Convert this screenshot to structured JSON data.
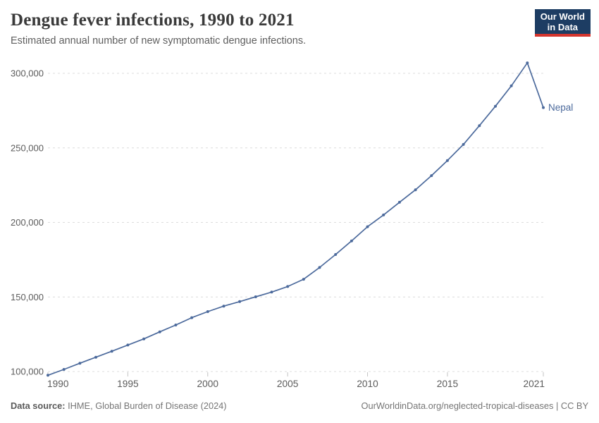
{
  "header": {
    "title": "Dengue fever infections, 1990 to 2021",
    "subtitle": "Estimated annual number of new symptomatic dengue infections.",
    "logo": {
      "line1": "Our World",
      "line2": "in Data"
    }
  },
  "footer": {
    "source_label": "Data source:",
    "source_text": " IHME, Global Burden of Disease (2024)",
    "link_text": "OurWorldinData.org/neglected-tropical-diseases | CC BY"
  },
  "colors": {
    "series": "#4c6a9c",
    "gridline": "#dcdcdc",
    "tick": "#c3c3c3",
    "axis_label": "#5b5b5b",
    "logo_bg": "#1d3d63",
    "logo_red": "#d3352e"
  },
  "chart_data": {
    "type": "line",
    "title": "Dengue fever infections, 1990 to 2021",
    "subtitle": "Estimated annual number of new symptomatic dengue infections.",
    "xlabel": "",
    "ylabel": "",
    "grid": true,
    "legend": "end-of-line-label",
    "xlim": [
      1990,
      2021
    ],
    "ylim": [
      100000,
      300000
    ],
    "x_ticks": [
      1990,
      1995,
      2000,
      2005,
      2010,
      2015,
      2021
    ],
    "y_ticks": [
      100000,
      150000,
      200000,
      250000,
      300000
    ],
    "y_tick_labels": [
      "100,000",
      "150,000",
      "200,000",
      "250,000",
      "300,000"
    ],
    "x": [
      1990,
      1991,
      1992,
      1993,
      1994,
      1995,
      1996,
      1997,
      1998,
      1999,
      2000,
      2001,
      2002,
      2003,
      2004,
      2005,
      2006,
      2007,
      2008,
      2009,
      2010,
      2011,
      2012,
      2013,
      2014,
      2015,
      2016,
      2017,
      2018,
      2019,
      2020,
      2021
    ],
    "series": [
      {
        "name": "Nepal",
        "color": "#4c6a9c",
        "values": [
          97500,
          101400,
          105600,
          109600,
          113600,
          117800,
          121900,
          126600,
          131200,
          136100,
          140200,
          143900,
          146900,
          150100,
          153300,
          157000,
          161900,
          169800,
          178500,
          187600,
          197100,
          205000,
          213500,
          221900,
          231400,
          241500,
          252300,
          264900,
          277900,
          291600,
          307000,
          277000
        ]
      }
    ]
  }
}
